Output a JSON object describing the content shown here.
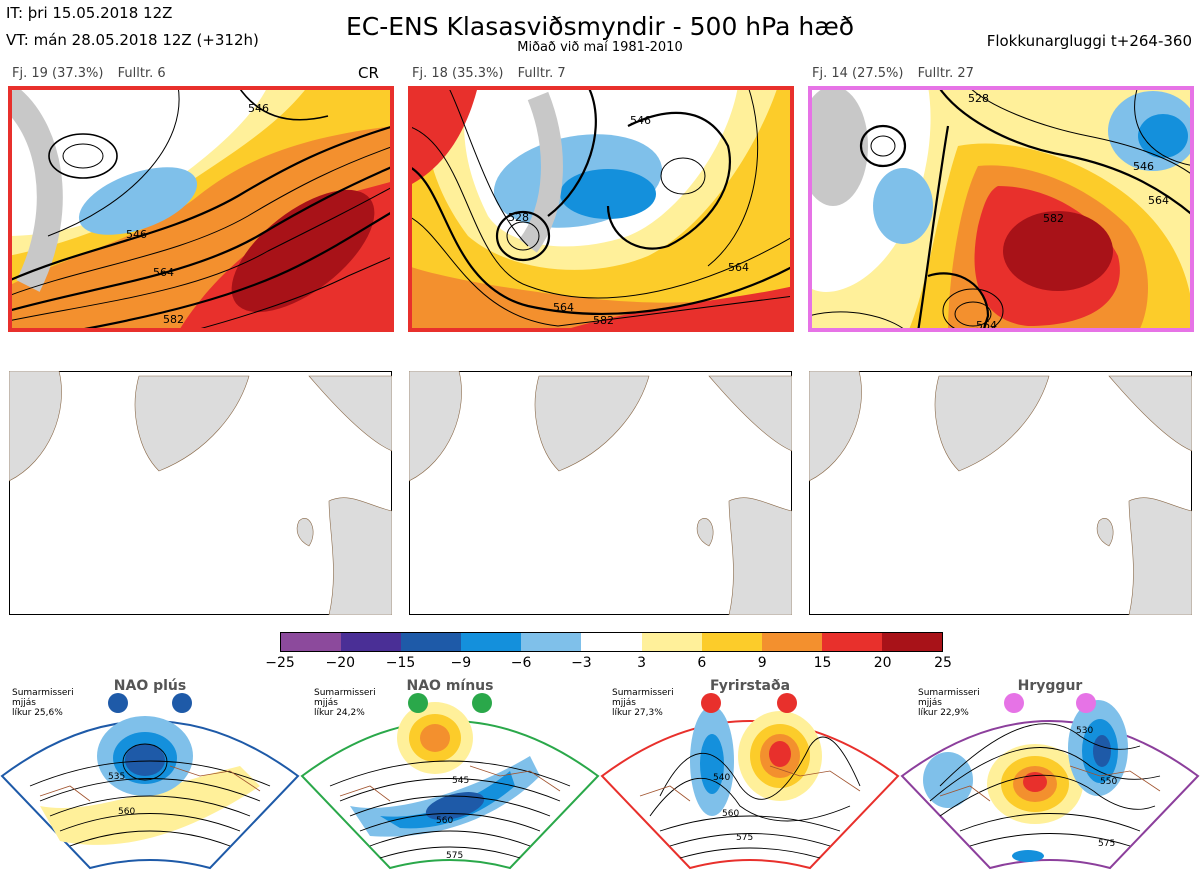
{
  "header": {
    "it": "IT: þri 15.05.2018 12Z",
    "vt": "VT: mán 28.05.2018 12Z  (+312h)",
    "title": "EC-ENS Klasasviðsmyndir - 500 hPa hæð",
    "subtitle": "Miðað við maí 1981-2010",
    "window": "Flokkunargluggi t+264-360"
  },
  "panels": [
    {
      "cluster": "Fj. 19 (37.3%)",
      "representative": "Fulltr. 6",
      "tag": "CR",
      "border": "#e8302c",
      "contours": [
        "546",
        "546",
        "564",
        "582"
      ]
    },
    {
      "cluster": "Fj. 18 (35.3%)",
      "representative": "Fulltr. 7",
      "tag": "",
      "border": "#e8302c",
      "contours": [
        "528",
        "546",
        "564",
        "582",
        "564"
      ]
    },
    {
      "cluster": "Fj. 14 (27.5%)",
      "representative": "Fulltr. 27",
      "tag": "",
      "border": "#e673e6",
      "contours": [
        "528",
        "546",
        "564",
        "582",
        "564"
      ]
    }
  ],
  "colorbar": {
    "ticks": [
      "−25",
      "−20",
      "−15",
      "−9",
      "−6",
      "−3",
      "3",
      "6",
      "9",
      "15",
      "20",
      "25"
    ],
    "colors": [
      "#8c4a9c",
      "#4a2f96",
      "#1e5aa8",
      "#1490dc",
      "#7fc0ea",
      "#ffffff",
      "#fff09a",
      "#fccc2a",
      "#f3902e",
      "#e8302c",
      "#a81218"
    ]
  },
  "climate_regimes": [
    {
      "name": "NAO plús",
      "line1": "Sumarmisseri",
      "line2": "mjjás",
      "line3": "líkur 25,6%",
      "color": "#1e5aa8",
      "contours": [
        "535",
        "560"
      ]
    },
    {
      "name": "NAO mínus",
      "line1": "Sumarmisseri",
      "line2": "mjjás",
      "line3": "líkur 24,2%",
      "color": "#2aa84a",
      "contours": [
        "545",
        "560",
        "575"
      ]
    },
    {
      "name": "Fyrirstaða",
      "line1": "Sumarmisseri",
      "line2": "mjjás",
      "line3": "líkur 27,3%",
      "color": "#e8302c",
      "contours": [
        "540",
        "560",
        "575"
      ]
    },
    {
      "name": "Hryggur",
      "line1": "Sumarmisseri",
      "line2": "mjjás",
      "line3": "líkur 22,9%",
      "color": "#8c3f9c",
      "contours": [
        "530",
        "550",
        "575"
      ]
    }
  ]
}
